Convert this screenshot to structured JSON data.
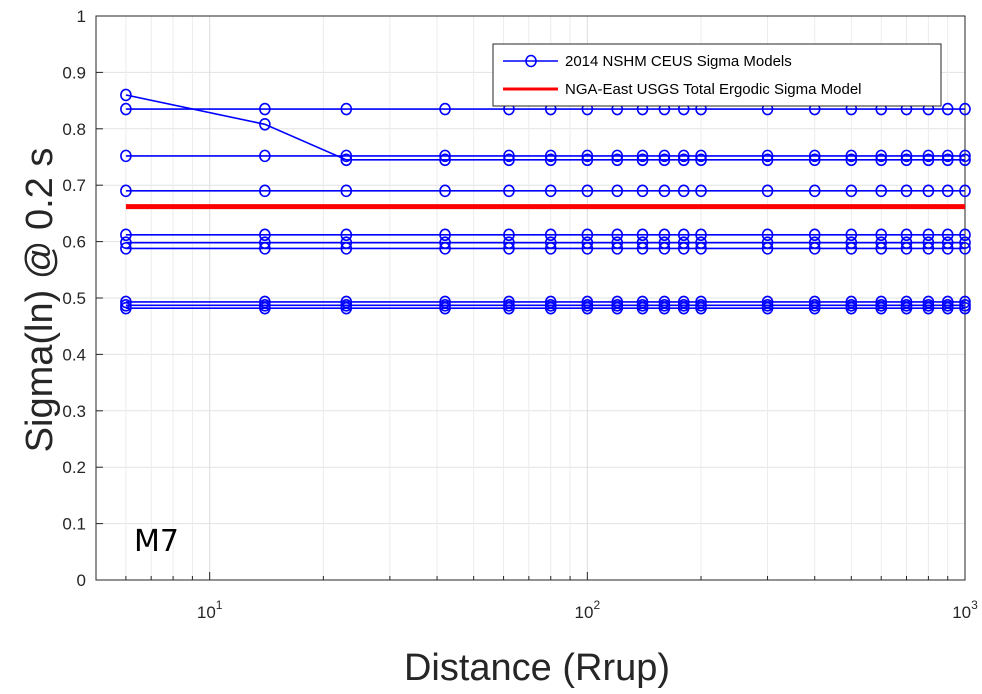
{
  "chart_data": {
    "type": "line",
    "xlabel": "Distance (Rrup)",
    "ylabel": "Sigma(ln) @ 0.2 s",
    "xscale": "log",
    "xlim": [
      5,
      1000
    ],
    "ylim": [
      0,
      1
    ],
    "grid": true,
    "legend_position": "top-right",
    "annotation": "M7",
    "y_ticks": [
      "0",
      "0.1",
      "0.2",
      "0.3",
      "0.4",
      "0.5",
      "0.6",
      "0.7",
      "0.8",
      "0.9",
      "1"
    ],
    "x_ticks": [
      {
        "value": 10,
        "base": "10",
        "exp": "1"
      },
      {
        "value": 100,
        "base": "10",
        "exp": "2"
      },
      {
        "value": 1000,
        "base": "10",
        "exp": "3"
      }
    ],
    "x": [
      6,
      14,
      23,
      42,
      62,
      80,
      100,
      120,
      140,
      160,
      180,
      200,
      300,
      400,
      500,
      600,
      700,
      800,
      900,
      1000
    ],
    "series": [
      {
        "name": "2014 NSHM CEUS Sigma Models",
        "color": "#0000ff",
        "marker": "circle",
        "show_in_legend": true,
        "values": [
          0.86,
          0.808,
          0.745,
          0.745,
          0.745,
          0.745,
          0.745,
          0.745,
          0.745,
          0.745,
          0.745,
          0.745,
          0.745,
          0.745,
          0.745,
          0.745,
          0.745,
          0.745,
          0.745,
          0.745
        ]
      },
      {
        "color": "#0000ff",
        "marker": "circle",
        "show_in_legend": false,
        "values": [
          0.835,
          0.835,
          0.835,
          0.835,
          0.835,
          0.835,
          0.835,
          0.835,
          0.835,
          0.835,
          0.835,
          0.835,
          0.835,
          0.835,
          0.835,
          0.835,
          0.835,
          0.835,
          0.835,
          0.835
        ]
      },
      {
        "color": "#0000ff",
        "marker": "circle",
        "show_in_legend": false,
        "values": [
          0.752,
          0.752,
          0.752,
          0.752,
          0.752,
          0.752,
          0.752,
          0.752,
          0.752,
          0.752,
          0.752,
          0.752,
          0.752,
          0.752,
          0.752,
          0.752,
          0.752,
          0.752,
          0.752,
          0.752
        ]
      },
      {
        "color": "#0000ff",
        "marker": "circle",
        "show_in_legend": false,
        "values": [
          0.69,
          0.69,
          0.69,
          0.69,
          0.69,
          0.69,
          0.69,
          0.69,
          0.69,
          0.69,
          0.69,
          0.69,
          0.69,
          0.69,
          0.69,
          0.69,
          0.69,
          0.69,
          0.69,
          0.69
        ]
      },
      {
        "color": "#0000ff",
        "marker": "circle",
        "show_in_legend": false,
        "values": [
          0.612,
          0.612,
          0.612,
          0.612,
          0.612,
          0.612,
          0.612,
          0.612,
          0.612,
          0.612,
          0.612,
          0.612,
          0.612,
          0.612,
          0.612,
          0.612,
          0.612,
          0.612,
          0.612,
          0.612
        ]
      },
      {
        "color": "#0000ff",
        "marker": "circle",
        "show_in_legend": false,
        "values": [
          0.598,
          0.598,
          0.598,
          0.598,
          0.598,
          0.598,
          0.598,
          0.598,
          0.598,
          0.598,
          0.598,
          0.598,
          0.598,
          0.598,
          0.598,
          0.598,
          0.598,
          0.598,
          0.598,
          0.598
        ]
      },
      {
        "color": "#0000ff",
        "marker": "circle",
        "show_in_legend": false,
        "values": [
          0.588,
          0.588,
          0.588,
          0.588,
          0.588,
          0.588,
          0.588,
          0.588,
          0.588,
          0.588,
          0.588,
          0.588,
          0.588,
          0.588,
          0.588,
          0.588,
          0.588,
          0.588,
          0.588,
          0.588
        ]
      },
      {
        "color": "#0000ff",
        "marker": "circle",
        "show_in_legend": false,
        "values": [
          0.493,
          0.493,
          0.493,
          0.493,
          0.493,
          0.493,
          0.493,
          0.493,
          0.493,
          0.493,
          0.493,
          0.493,
          0.493,
          0.493,
          0.493,
          0.493,
          0.493,
          0.493,
          0.493,
          0.493
        ]
      },
      {
        "color": "#0000ff",
        "marker": "circle",
        "show_in_legend": false,
        "values": [
          0.487,
          0.487,
          0.487,
          0.487,
          0.487,
          0.487,
          0.487,
          0.487,
          0.487,
          0.487,
          0.487,
          0.487,
          0.487,
          0.487,
          0.487,
          0.487,
          0.487,
          0.487,
          0.487,
          0.487
        ]
      },
      {
        "color": "#0000ff",
        "marker": "circle",
        "show_in_legend": false,
        "values": [
          0.482,
          0.482,
          0.482,
          0.482,
          0.482,
          0.482,
          0.482,
          0.482,
          0.482,
          0.482,
          0.482,
          0.482,
          0.482,
          0.482,
          0.482,
          0.482,
          0.482,
          0.482,
          0.482,
          0.482
        ]
      },
      {
        "name": "NGA-East USGS Total Ergodic Sigma Model",
        "color": "#ff0000",
        "marker": "none",
        "show_in_legend": true,
        "x": [
          6,
          1000
        ],
        "values": [
          0.662,
          0.662
        ]
      }
    ]
  }
}
